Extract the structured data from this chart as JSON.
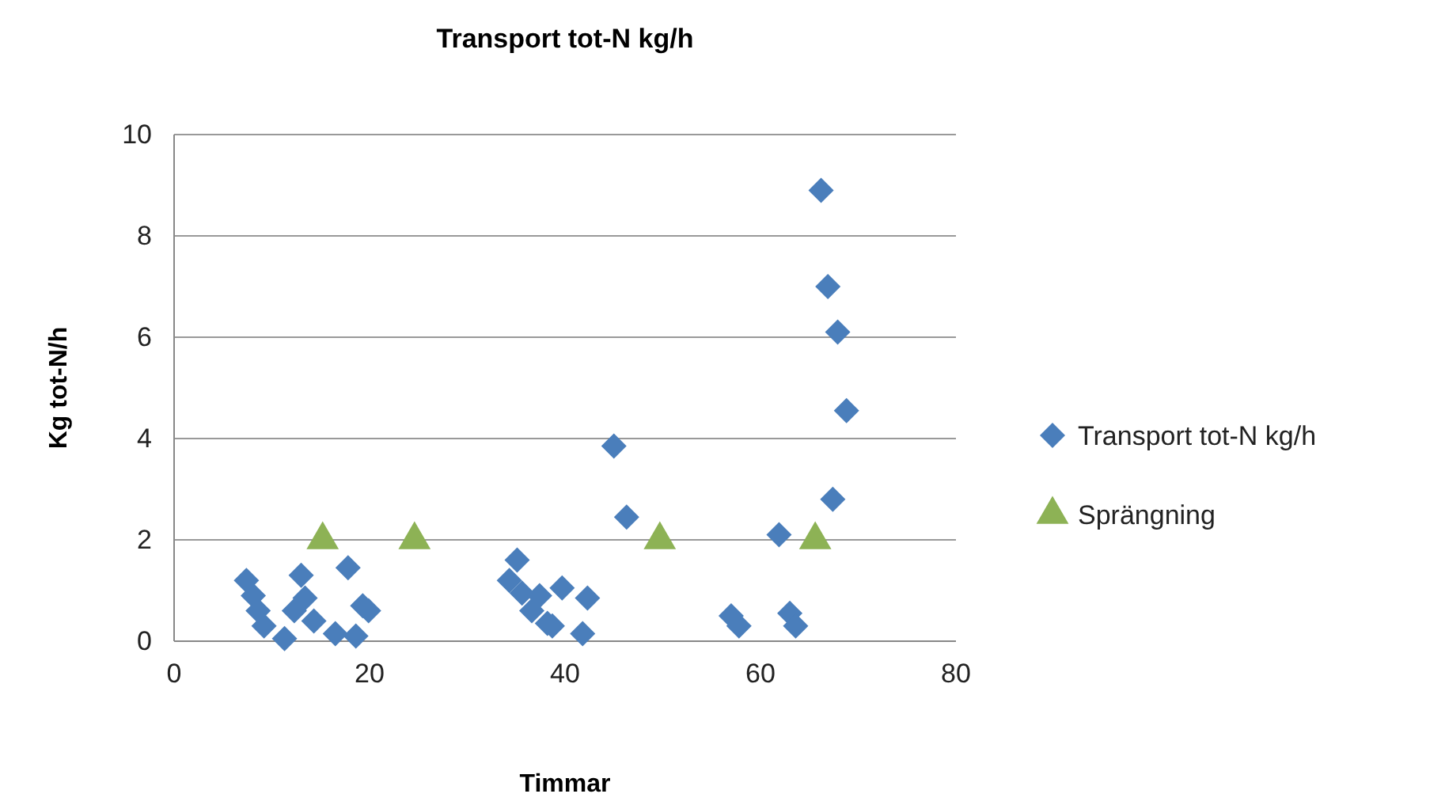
{
  "chart_data": {
    "type": "scatter",
    "title": "Transport tot-N kg/h",
    "xlabel": "Timmar",
    "ylabel": "Kg tot-N/h",
    "xlim": [
      0,
      80
    ],
    "xticks": [
      0,
      20,
      40,
      60,
      80
    ],
    "ylim": [
      0,
      10
    ],
    "yticks": [
      0,
      2,
      4,
      6,
      8,
      10
    ],
    "grid": "y",
    "legend": "right",
    "series": [
      {
        "name": "Transport tot-N kg/h",
        "color": "#4a7ebb",
        "marker": "diamond",
        "x": [
          7.4,
          8.1,
          8.6,
          9.2,
          11.3,
          12.3,
          13.0,
          13.4,
          14.3,
          16.5,
          17.8,
          18.6,
          19.3,
          19.9,
          34.3,
          35.1,
          35.6,
          36.6,
          37.4,
          38.2,
          38.7,
          39.7,
          41.8,
          42.3,
          45.0,
          46.3,
          57.0,
          57.8,
          61.9,
          63.0,
          63.6,
          66.2,
          66.9,
          67.4,
          67.9,
          68.8
        ],
        "values": [
          1.2,
          0.9,
          0.6,
          0.3,
          0.05,
          0.6,
          1.3,
          0.85,
          0.4,
          0.15,
          1.45,
          0.1,
          0.7,
          0.6,
          1.2,
          1.6,
          0.95,
          0.6,
          0.9,
          0.35,
          0.3,
          1.05,
          0.15,
          0.85,
          3.85,
          2.45,
          0.5,
          0.3,
          2.1,
          0.55,
          0.3,
          8.9,
          7.0,
          2.8,
          6.1,
          4.55
        ]
      },
      {
        "name": "Sprängning",
        "color": "#8db255",
        "marker": "triangle",
        "x": [
          15.2,
          24.6,
          49.7,
          65.6
        ],
        "values": [
          2,
          2,
          2,
          2
        ]
      }
    ]
  }
}
